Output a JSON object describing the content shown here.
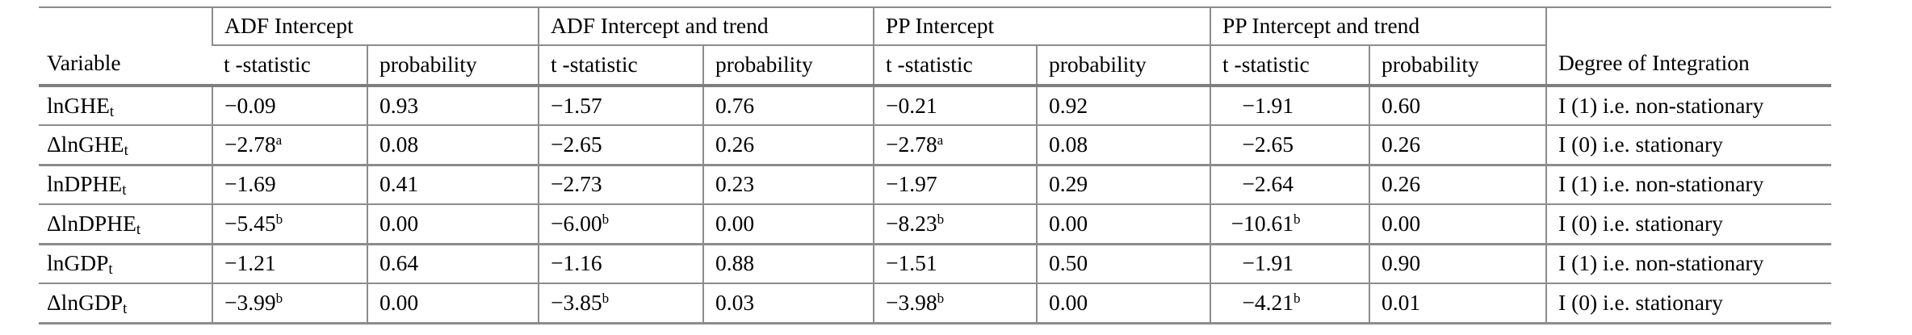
{
  "header": {
    "variable_label": "Variable",
    "groups": [
      {
        "label": "ADF Intercept"
      },
      {
        "label": "ADF Intercept and trend"
      },
      {
        "label": "PP Intercept"
      },
      {
        "label": "PP Intercept and trend"
      }
    ],
    "tstat_label": "t -statistic",
    "prob_label": "probability",
    "degree_label": "Degree of Integration"
  },
  "rows": [
    {
      "variable_base": "lnGHE",
      "variable_sub": "t",
      "group_sep": false,
      "cells": [
        {
          "v": "−0.09",
          "sup": ""
        },
        {
          "v": "0.93",
          "sup": ""
        },
        {
          "v": "−1.57",
          "sup": ""
        },
        {
          "v": "0.76",
          "sup": ""
        },
        {
          "v": "−0.21",
          "sup": ""
        },
        {
          "v": "0.92",
          "sup": ""
        },
        {
          "v": "−1.91",
          "sup": ""
        },
        {
          "v": "0.60",
          "sup": ""
        }
      ],
      "degree": "I (1) i.e. non-stationary"
    },
    {
      "variable_base": "ΔlnGHE",
      "variable_sub": "t",
      "group_sep": false,
      "cells": [
        {
          "v": "−2.78",
          "sup": "a"
        },
        {
          "v": "0.08",
          "sup": ""
        },
        {
          "v": "−2.65",
          "sup": ""
        },
        {
          "v": "0.26",
          "sup": ""
        },
        {
          "v": "−2.78",
          "sup": "a"
        },
        {
          "v": "0.08",
          "sup": ""
        },
        {
          "v": "−2.65",
          "sup": ""
        },
        {
          "v": "0.26",
          "sup": ""
        }
      ],
      "degree": "I (0) i.e. stationary"
    },
    {
      "variable_base": "lnDPHE",
      "variable_sub": "t",
      "group_sep": true,
      "cells": [
        {
          "v": "−1.69",
          "sup": ""
        },
        {
          "v": "0.41",
          "sup": ""
        },
        {
          "v": "−2.73",
          "sup": ""
        },
        {
          "v": "0.23",
          "sup": ""
        },
        {
          "v": "−1.97",
          "sup": ""
        },
        {
          "v": "0.29",
          "sup": ""
        },
        {
          "v": "−2.64",
          "sup": ""
        },
        {
          "v": "0.26",
          "sup": ""
        }
      ],
      "degree": "I (1) i.e. non-stationary"
    },
    {
      "variable_base": "ΔlnDPHE",
      "variable_sub": "t",
      "group_sep": false,
      "cells": [
        {
          "v": "−5.45",
          "sup": "b"
        },
        {
          "v": "0.00",
          "sup": ""
        },
        {
          "v": "−6.00",
          "sup": "b"
        },
        {
          "v": "0.00",
          "sup": ""
        },
        {
          "v": "−8.23",
          "sup": "b"
        },
        {
          "v": "0.00",
          "sup": ""
        },
        {
          "v": "−10.61",
          "sup": "b"
        },
        {
          "v": "0.00",
          "sup": ""
        }
      ],
      "degree": "I (0) i.e. stationary"
    },
    {
      "variable_base": "lnGDP",
      "variable_sub": "t",
      "group_sep": true,
      "cells": [
        {
          "v": "−1.21",
          "sup": ""
        },
        {
          "v": "0.64",
          "sup": ""
        },
        {
          "v": "−1.16",
          "sup": ""
        },
        {
          "v": "0.88",
          "sup": ""
        },
        {
          "v": "−1.51",
          "sup": ""
        },
        {
          "v": "0.50",
          "sup": ""
        },
        {
          "v": "−1.91",
          "sup": ""
        },
        {
          "v": "0.90",
          "sup": ""
        }
      ],
      "degree": "I (1) i.e. non-stationary"
    },
    {
      "variable_base": "ΔlnGDP",
      "variable_sub": "t",
      "group_sep": false,
      "cells": [
        {
          "v": "−3.99",
          "sup": "b"
        },
        {
          "v": "0.00",
          "sup": ""
        },
        {
          "v": "−3.85",
          "sup": "b"
        },
        {
          "v": "0.03",
          "sup": ""
        },
        {
          "v": "−3.98",
          "sup": "b"
        },
        {
          "v": "0.00",
          "sup": ""
        },
        {
          "v": "−4.21",
          "sup": "b"
        },
        {
          "v": "0.01",
          "sup": ""
        }
      ],
      "degree": "I (0) i.e. stationary"
    }
  ],
  "colors": {
    "border_gray": "#8c8c8c",
    "border_heavy_gray": "#7e7e7e",
    "text": "#000000",
    "background": "#ffffff"
  }
}
